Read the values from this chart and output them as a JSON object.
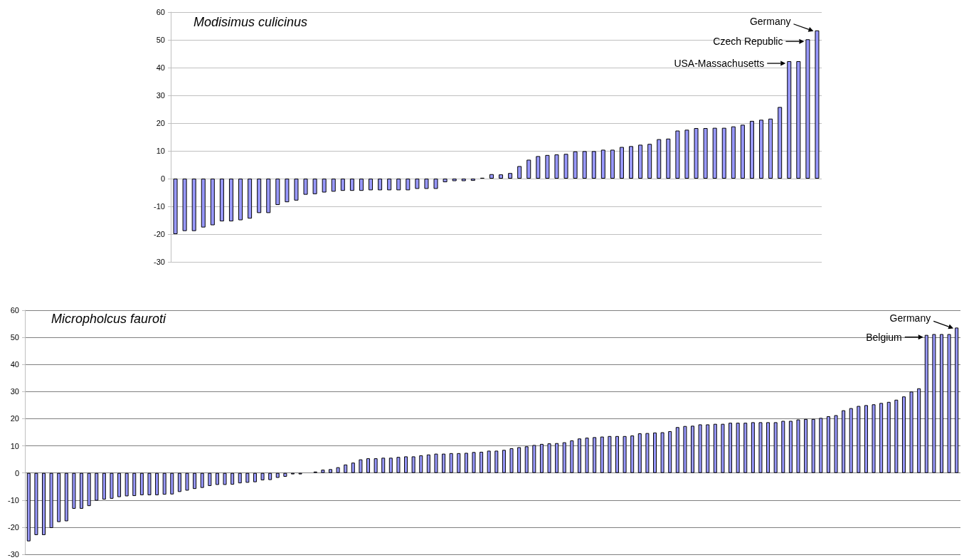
{
  "chart_data": [
    {
      "type": "bar",
      "title": "Modisimus culicinus",
      "color": "#9999ff",
      "grid": "y",
      "tick_labels": "y",
      "categories": [
        null,
        null,
        null,
        null,
        null,
        null,
        null,
        null,
        null,
        null,
        null,
        null,
        null,
        null,
        null,
        null,
        null,
        null,
        null,
        null,
        null,
        null,
        null,
        null,
        null,
        null,
        null,
        null,
        null,
        null,
        null,
        null,
        null,
        null,
        null,
        null,
        null,
        null,
        null,
        null,
        null,
        null,
        null,
        null,
        null,
        null,
        null,
        null,
        null,
        null,
        null,
        null,
        null,
        null,
        null,
        null,
        null,
        null,
        null,
        null,
        null,
        null,
        null,
        null,
        null,
        null,
        null,
        null,
        null,
        null
      ],
      "values": [
        -20,
        -18.9,
        -18.9,
        -17.6,
        -16.8,
        -15.4,
        -15.4,
        -15,
        -14.4,
        -12.4,
        -12.4,
        -9.5,
        -8.5,
        -7.9,
        -5.8,
        -5.6,
        -5,
        -4.7,
        -4.4,
        -4.4,
        -4.4,
        -4.2,
        -4.2,
        -4.2,
        -4.2,
        -4.2,
        -3.7,
        -3.7,
        -3.7,
        -1.3,
        -0.9,
        -0.9,
        -0.8,
        0.3,
        1.6,
        1.5,
        2,
        4.5,
        6.8,
        8.1,
        8.5,
        8.7,
        8.9,
        9.8,
        9.9,
        9.9,
        10.4,
        10.4,
        11.4,
        11.7,
        12.2,
        12.5,
        14.2,
        14.4,
        17.3,
        17.6,
        18.2,
        18.2,
        18.3,
        18.3,
        18.8,
        19.4,
        20.8,
        21.2,
        21.6,
        25.8,
        42.3,
        42.3,
        50.2,
        53.4
      ],
      "ylim": [
        -30,
        60
      ],
      "yticks": [
        -30,
        -20,
        -10,
        0,
        10,
        20,
        30,
        40,
        50,
        60
      ],
      "annotations": [
        "Germany",
        "Czech Republic",
        "USA-Massachusetts"
      ]
    },
    {
      "type": "bar",
      "title": "Micropholcus fauroti",
      "color": "#9999ff",
      "grid": "y",
      "tick_labels": "y",
      "categories": [
        null,
        null,
        null,
        null,
        null,
        null,
        null,
        null,
        null,
        null,
        null,
        null,
        null,
        null,
        null,
        null,
        null,
        null,
        null,
        null,
        null,
        null,
        null,
        null,
        null,
        null,
        null,
        null,
        null,
        null,
        null,
        null,
        null,
        null,
        null,
        null,
        null,
        null,
        null,
        null,
        null,
        null,
        null,
        null,
        null,
        null,
        null,
        null,
        null,
        null,
        null,
        null,
        null,
        null,
        null,
        null,
        null,
        null,
        null,
        null,
        null,
        null,
        null,
        null,
        null,
        null,
        null,
        null,
        null,
        null,
        null,
        null,
        null,
        null,
        null,
        null,
        null,
        null,
        null,
        null,
        null,
        null,
        null,
        null,
        null,
        null,
        null,
        null,
        null,
        null,
        null,
        null,
        null,
        null,
        null,
        null,
        null,
        null,
        null,
        null,
        null,
        null,
        null,
        null,
        null,
        null,
        null,
        null,
        null,
        null,
        null,
        null,
        null,
        null,
        null,
        null,
        null,
        null,
        null,
        null,
        null,
        null,
        null,
        null
      ],
      "values": [
        -25.2,
        -22.9,
        -22.9,
        -20.3,
        -18.1,
        -17.8,
        -13.2,
        -13.2,
        -12.2,
        -10.2,
        -9.8,
        -9.5,
        -8.9,
        -8.6,
        -8.5,
        -8.2,
        -8.2,
        -8.2,
        -8,
        -7.9,
        -7,
        -6.5,
        -5.9,
        -5.5,
        -4.8,
        -4.4,
        -4.4,
        -4.3,
        -3.8,
        -3.6,
        -3.4,
        -2.7,
        -2.6,
        -1.8,
        -1.4,
        -0.5,
        -0.5,
        null,
        0.5,
        1.2,
        1.4,
        2.1,
        3.1,
        3.8,
        5,
        5.4,
        5.4,
        5.6,
        5.6,
        5.9,
        6.1,
        6.1,
        6.5,
        6.8,
        7.1,
        7.1,
        7.3,
        7.3,
        7.4,
        7.7,
        7.8,
        8.2,
        8.2,
        8.5,
        9.1,
        9.5,
        9.8,
        10.3,
        10.7,
        10.9,
        11,
        11.3,
        12,
        12.7,
        13,
        13.2,
        13.4,
        13.6,
        13.6,
        13.6,
        13.8,
        14.6,
        14.7,
        14.9,
        15,
        15.4,
        16.9,
        17.3,
        17.4,
        17.9,
        17.9,
        18.1,
        18.1,
        18.5,
        18.5,
        18.5,
        18.7,
        18.7,
        18.7,
        18.7,
        19.2,
        19.2,
        19.7,
        19.9,
        19.9,
        20.3,
        20.9,
        21.3,
        23.1,
        23.9,
        24.7,
        25,
        25.3,
        25.8,
        26.2,
        27,
        28.2,
        30,
        31.2,
        50.9,
        51.2,
        51.2,
        51.2,
        53.6
      ],
      "ylim": [
        -30,
        60
      ],
      "yticks": [
        -30,
        -20,
        -10,
        0,
        10,
        20,
        30,
        40,
        50,
        60
      ],
      "annotations": [
        "Germany",
        "Belgium"
      ]
    }
  ]
}
